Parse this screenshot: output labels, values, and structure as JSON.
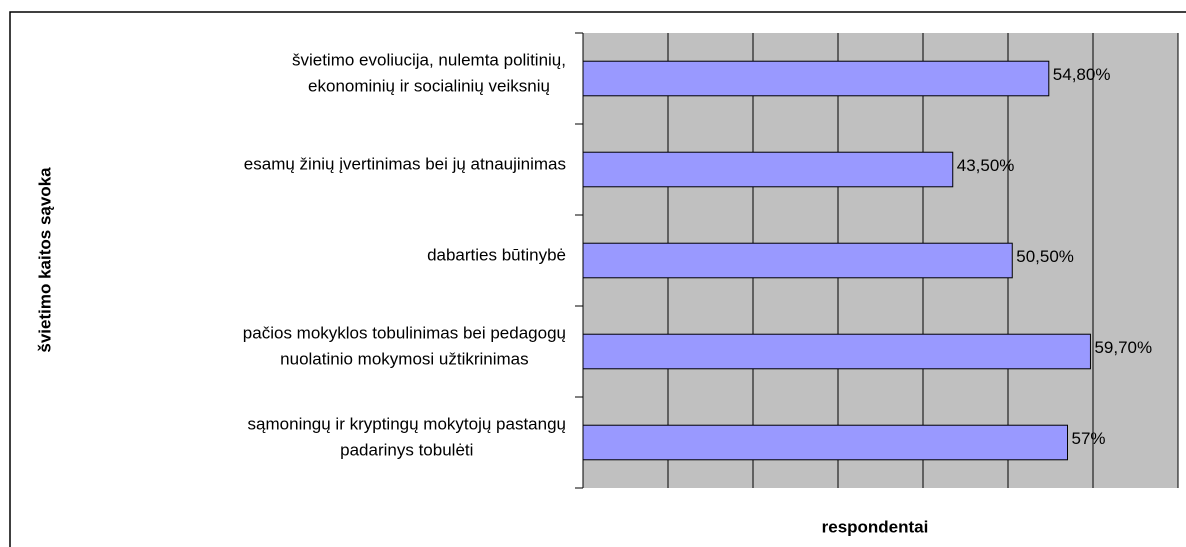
{
  "chart_data": {
    "type": "bar",
    "orientation": "horizontal",
    "categories": [
      "švietimo evoliucija, nulemta politinių,\nekonominių ir socialinių veiksnių",
      "esamų žinių įvertinimas bei jų atnaujinimas",
      "dabarties būtinybė",
      "pačios mokyklos tobulinimas bei pedagogų\nnuolatinio mokymosi užtikrinimas",
      "sąmoningų ir kryptingų mokytojų pastangų\npadarinys tobulėti"
    ],
    "values": [
      54.8,
      43.5,
      50.5,
      59.7,
      57
    ],
    "value_labels": [
      "54,80%",
      "43,50%",
      "50,50%",
      "59,70%",
      "57%"
    ],
    "color": "#9999ff",
    "xlabel": "respondentai",
    "ylabel": "švietimo kaitos sąvoka",
    "xlim": [
      0,
      70
    ],
    "xticks": [
      0,
      10,
      20,
      30,
      40,
      50,
      60,
      70
    ],
    "grid": true
  }
}
